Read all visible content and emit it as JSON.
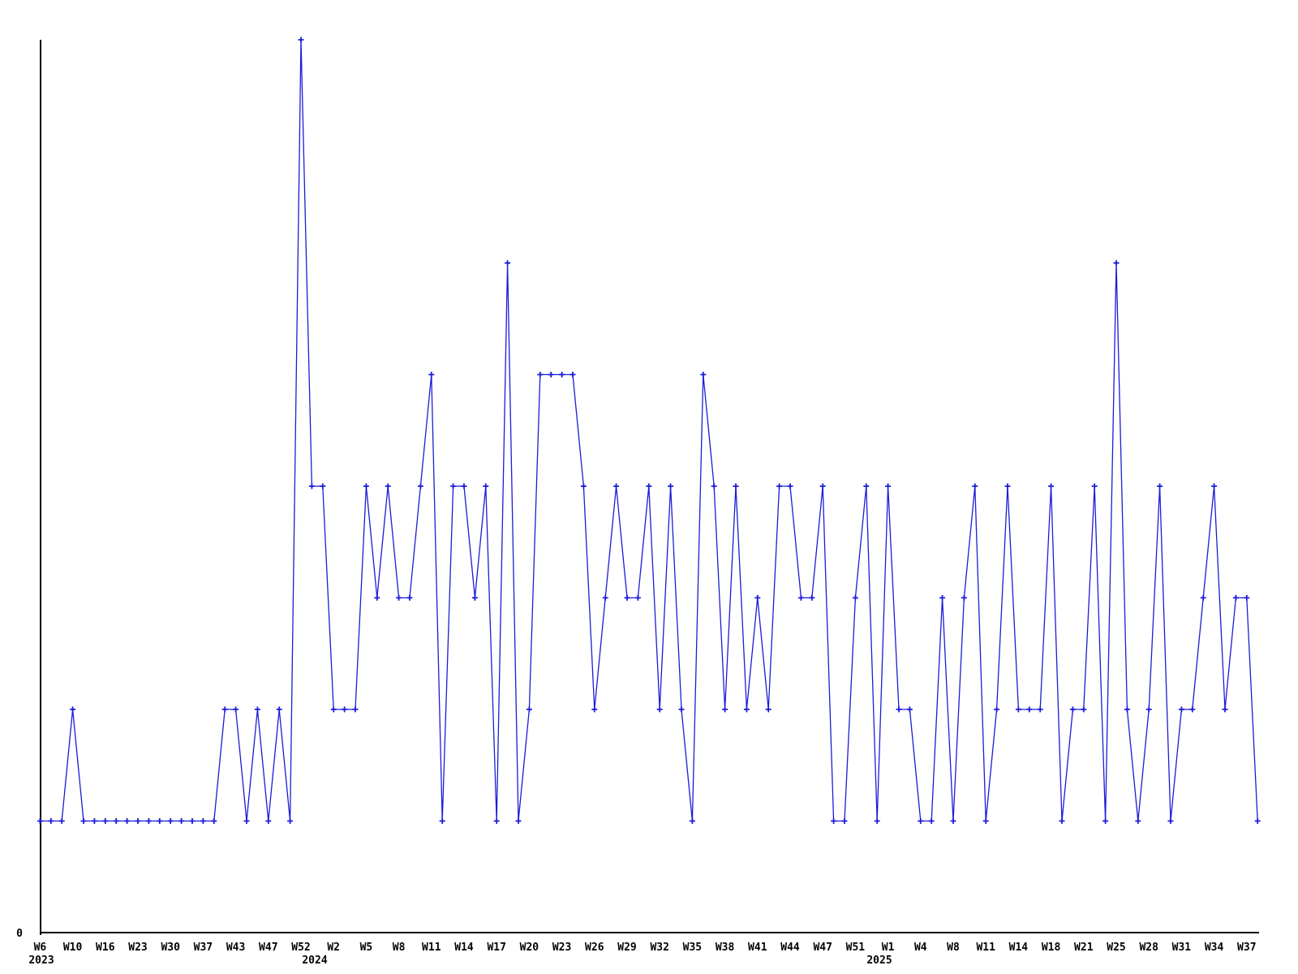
{
  "chart_data": {
    "type": "line",
    "title": "",
    "xlabel": "",
    "ylabel": "",
    "x_unit": "ISO week",
    "x_start": "2023-W06",
    "x_end": "2025-W38",
    "ylim": [
      0,
      8
    ],
    "grid": false,
    "legend": null,
    "marker": "plus",
    "line_color": "#1c1cd8",
    "axis_color": "#000000",
    "background_color": "#ffffff",
    "y_axis_labels": [
      "0"
    ],
    "values": [
      1,
      1,
      1,
      2,
      1,
      1,
      1,
      1,
      1,
      1,
      1,
      1,
      1,
      1,
      1,
      1,
      1,
      2,
      2,
      1,
      2,
      1,
      2,
      1,
      8,
      4,
      4,
      2,
      2,
      2,
      4,
      3,
      4,
      3,
      3,
      4,
      5,
      1,
      4,
      4,
      3,
      4,
      1,
      6,
      1,
      2,
      5,
      5,
      5,
      5,
      4,
      2,
      3,
      4,
      3,
      3,
      4,
      2,
      4,
      2,
      1,
      5,
      4,
      2,
      4,
      2,
      3,
      2,
      4,
      4,
      3,
      3,
      4,
      1,
      1,
      3,
      4,
      1,
      4,
      2,
      2,
      1,
      1,
      3,
      1,
      3,
      4,
      1,
      2,
      4,
      2,
      2,
      2,
      4,
      1,
      2,
      2,
      4,
      1,
      6,
      2,
      1,
      2,
      4,
      1,
      2,
      2,
      3,
      4,
      2,
      3,
      3,
      1
    ],
    "tick_every": 3,
    "tick_labels": [
      "W6",
      "W10",
      "W16",
      "W23",
      "W30",
      "W37",
      "W43",
      "W47",
      "W52",
      "W2",
      "W5",
      "W8",
      "W11",
      "W14",
      "W17",
      "W20",
      "W23",
      "W26",
      "W29",
      "W32",
      "W35",
      "W38",
      "W41",
      "W44",
      "W47",
      "W51",
      "W1",
      "W4",
      "W8",
      "W11",
      "W14",
      "W18",
      "W21",
      "W25",
      "W28",
      "W31",
      "W34",
      "W37"
    ],
    "year_rows": [
      {
        "label": "2023",
        "x": 51
      },
      {
        "label": "2024",
        "x": 388
      },
      {
        "label": "2025",
        "x": 1084
      }
    ]
  }
}
